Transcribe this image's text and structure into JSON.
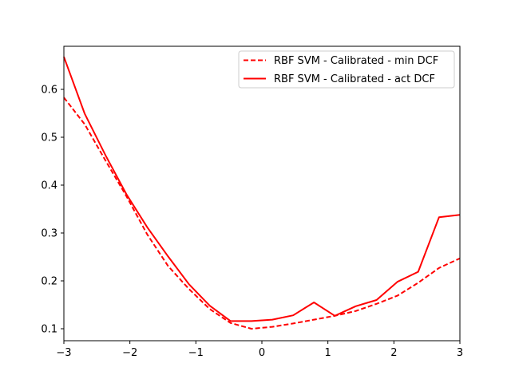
{
  "chart_data": {
    "type": "line",
    "title": "",
    "xlabel": "",
    "ylabel": "",
    "xlim": [
      -3,
      3
    ],
    "ylim": [
      0.075,
      0.69
    ],
    "xticks": [
      -3,
      -2,
      -1,
      0,
      1,
      2,
      3
    ],
    "xtick_labels": [
      "−3",
      "−2",
      "−1",
      "0",
      "1",
      "2",
      "3"
    ],
    "yticks": [
      0.1,
      0.2,
      0.3,
      0.4,
      0.5,
      0.6
    ],
    "ytick_labels": [
      "0.1",
      "0.2",
      "0.3",
      "0.4",
      "0.5",
      "0.6"
    ],
    "grid": false,
    "legend_position": "top-right",
    "x": [
      -3.0,
      -2.684,
      -2.368,
      -2.053,
      -1.737,
      -1.421,
      -1.105,
      -0.789,
      -0.474,
      -0.158,
      0.158,
      0.474,
      0.789,
      1.105,
      1.421,
      1.737,
      2.053,
      2.368,
      2.684,
      3.0
    ],
    "series": [
      {
        "name": "RBF SVM - Calibrated - min DCF",
        "color": "#ff0000",
        "style": "dashed",
        "values": [
          0.583,
          0.527,
          0.451,
          0.377,
          0.297,
          0.231,
          0.183,
          0.141,
          0.112,
          0.1,
          0.104,
          0.111,
          0.119,
          0.127,
          0.137,
          0.152,
          0.169,
          0.196,
          0.227,
          0.247
        ]
      },
      {
        "name": "RBF SVM - Calibrated - act DCF",
        "color": "#ff0000",
        "style": "solid",
        "values": [
          0.668,
          0.549,
          0.462,
          0.381,
          0.312,
          0.251,
          0.193,
          0.148,
          0.116,
          0.116,
          0.119,
          0.128,
          0.155,
          0.127,
          0.147,
          0.16,
          0.198,
          0.219,
          0.333,
          0.338
        ]
      }
    ]
  }
}
